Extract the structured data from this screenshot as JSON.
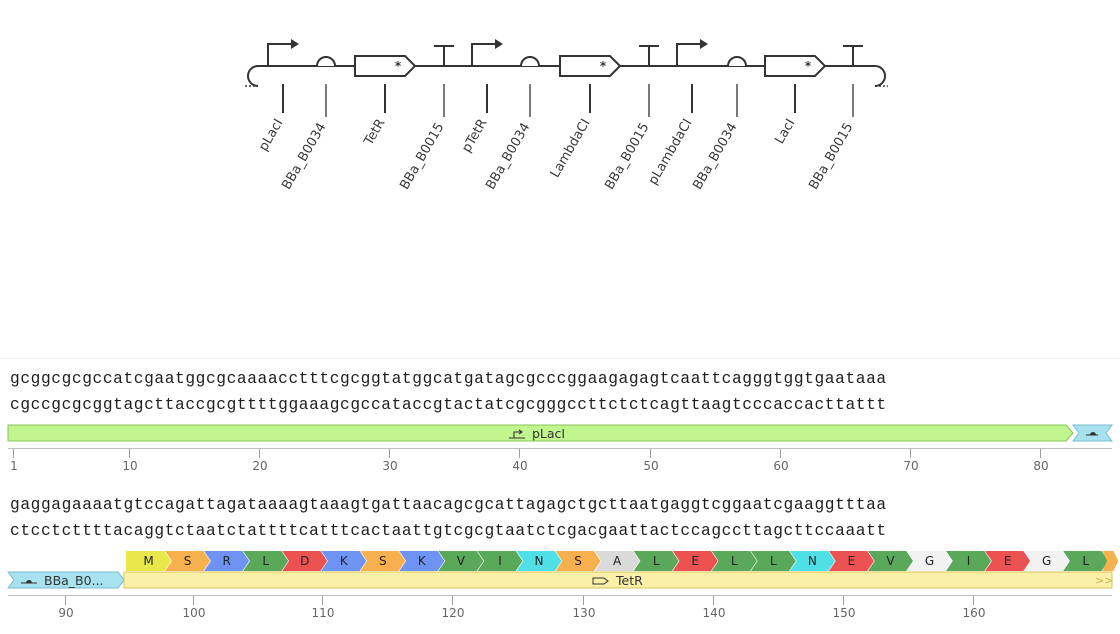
{
  "circuit": {
    "parts": [
      {
        "type": "promoter",
        "label": "pLacI"
      },
      {
        "type": "rbs",
        "label": "BBa_B0034"
      },
      {
        "type": "cds",
        "label": "TetR"
      },
      {
        "type": "terminator",
        "label": "BBa_B0015"
      },
      {
        "type": "promoter",
        "label": "pTetR"
      },
      {
        "type": "rbs",
        "label": "BBa_B0034"
      },
      {
        "type": "cds",
        "label": "LambdaCI"
      },
      {
        "type": "terminator",
        "label": "BBa_B0015"
      },
      {
        "type": "promoter",
        "label": "pLambdaCI"
      },
      {
        "type": "rbs",
        "label": "BBa_B0034"
      },
      {
        "type": "cds",
        "label": "LacI"
      },
      {
        "type": "terminator",
        "label": "BBa_B0015"
      }
    ]
  },
  "sequence": {
    "block1": {
      "top_strand": "gcggcgcgccatcgaatggcgcaaaacctttcgcggtatggcatgatagcgcccggaagagagtcaattcagggtggtgaataaa",
      "bottom_strand": "cgccgcgcggtagcttaccgcgttttggaaagcgccataccgtactatcgcgggccttctctcagttaagtcccaccacttattt",
      "annotations": [
        {
          "name": "pLacI",
          "kind": "promoter",
          "color": "#c1f58e",
          "icon": "promoter-arrow-icon"
        }
      ],
      "ruler": [
        "1",
        "10",
        "20",
        "30",
        "40",
        "50",
        "60",
        "70",
        "80"
      ]
    },
    "block2": {
      "top_strand": "gaggagaaaatgtccagattagataaaagtaaagtgattaacagcgcattagagctgcttaatgaggtcggaatcgaaggtttaa",
      "bottom_strand": "ctcctcttttacaggtctaatctattttcatttcactaattgtcgcgtaatctcgacgaattactccagccttagcttccaaatt",
      "annotations": [
        {
          "name": "BBa_B0...",
          "kind": "rbs",
          "color": "#a9e2ef",
          "icon": "rbs-icon"
        },
        {
          "name": "TetR",
          "kind": "cds",
          "color": "#fbf0a8",
          "icon": "cds-icon"
        }
      ],
      "translation": [
        "M",
        "S",
        "R",
        "L",
        "D",
        "K",
        "S",
        "K",
        "V",
        "I",
        "N",
        "S",
        "A",
        "L",
        "E",
        "L",
        "L",
        "N",
        "E",
        "V",
        "G",
        "I",
        "E",
        "G",
        "L"
      ],
      "ruler": [
        "90",
        "100",
        "110",
        "120",
        "130",
        "140",
        "150",
        "160"
      ]
    }
  },
  "aa_colors": {
    "M": "#e8e84a",
    "S": "#f7b04e",
    "R": "#6f93f3",
    "L": "#5aa95a",
    "D": "#ec5252",
    "K": "#6f93f3",
    "V": "#5aa95a",
    "I": "#5aa95a",
    "N": "#4fdfe6",
    "A": "#dadada",
    "E": "#ec5252",
    "G": "#f2f2f2"
  }
}
